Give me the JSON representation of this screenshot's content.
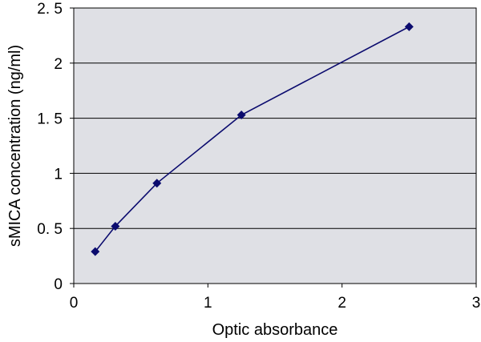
{
  "chart_data": {
    "type": "line",
    "title": "",
    "xlabel": "Optic absorbance",
    "ylabel": "sMICA concentration (ng/ml)",
    "xlim": [
      0,
      3
    ],
    "ylim": [
      0,
      2.5
    ],
    "x_ticks": [
      "0",
      "1",
      "2",
      "3"
    ],
    "y_ticks": [
      "0",
      "0. 5",
      "1",
      "1. 5",
      "2",
      "2. 5"
    ],
    "grid": "horizontal",
    "plot_background": "#dfe0e5",
    "series": [
      {
        "color": "#0b0b6e",
        "marker": "diamond",
        "x": [
          0.16,
          0.31,
          0.62,
          1.25,
          2.5
        ],
        "y": [
          0.29,
          0.52,
          0.91,
          1.53,
          2.33
        ]
      }
    ]
  }
}
